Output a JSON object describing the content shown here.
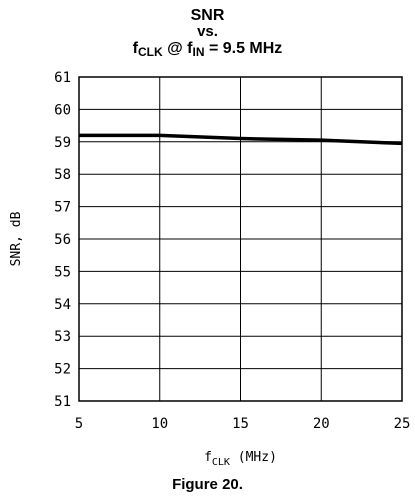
{
  "title": {
    "line1": "SNR",
    "line2": "vs.",
    "line3_prefix": "f",
    "line3_sub1": "CLK",
    "line3_mid": " @ f",
    "line3_sub2": "IN",
    "line3_suffix": " = 9.5 MHz"
  },
  "caption": "Figure 20.",
  "chart_data": {
    "type": "line",
    "xlabel": "f",
    "xlabel_sub": "CLK",
    "xlabel_unit": " (MHz)",
    "ylabel": "SNR, dB",
    "xlim": [
      5,
      25
    ],
    "ylim": [
      51,
      61
    ],
    "x_ticks": [
      5,
      10,
      15,
      20,
      25
    ],
    "y_ticks": [
      51,
      52,
      53,
      54,
      55,
      56,
      57,
      58,
      59,
      60,
      61
    ],
    "grid": true,
    "series": [
      {
        "color": "#000000",
        "x": [
          5,
          10,
          15,
          20,
          25
        ],
        "values": [
          59.2,
          59.2,
          59.1,
          59.05,
          58.95
        ]
      }
    ]
  }
}
